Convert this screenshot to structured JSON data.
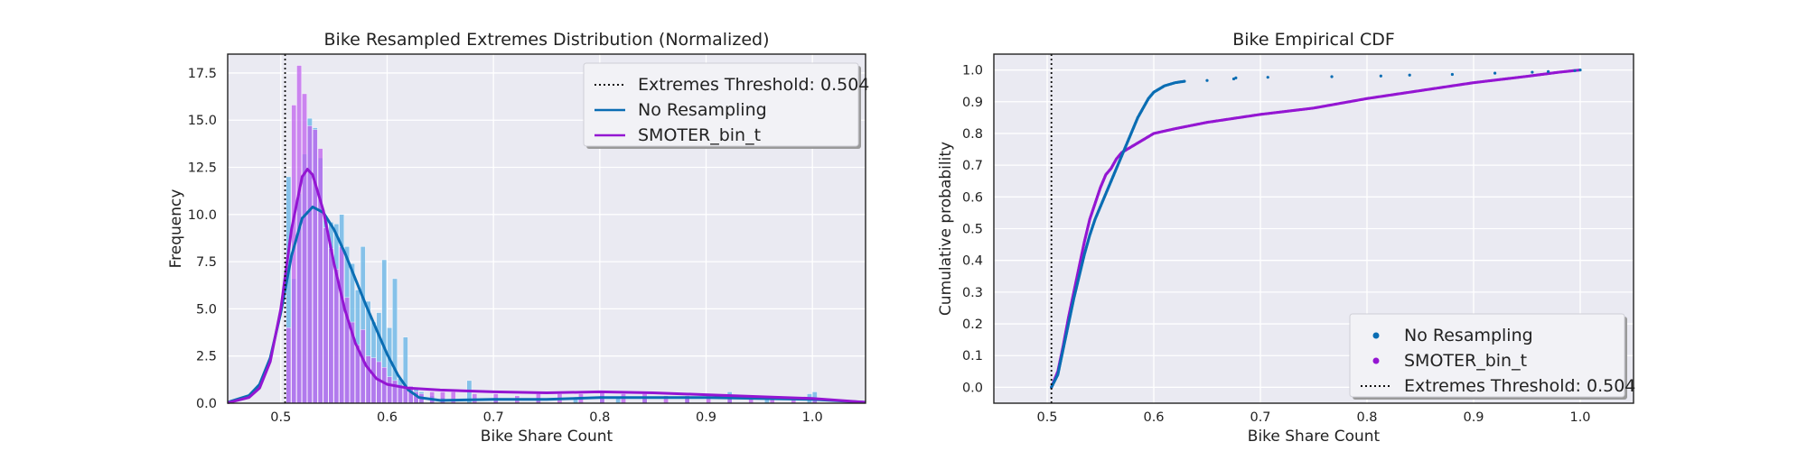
{
  "colors": {
    "no_resampling": "#0a6db3",
    "no_resampling_hist": "#6cb7e6",
    "smoter": "#9416d2",
    "smoter_hist": "#c062ee",
    "threshold": "#111111",
    "axes_bg": "#eaeaf2",
    "grid": "#ffffff"
  },
  "chart_data": [
    {
      "type": "histogram+kde",
      "title": "Bike Resampled Extremes Distribution (Normalized)",
      "xlabel": "Bike Share Count",
      "ylabel": "Frequency",
      "xlim": [
        0.45,
        1.05
      ],
      "ylim": [
        0,
        18.5
      ],
      "xticks": [
        "0.5",
        "0.6",
        "0.7",
        "0.8",
        "0.9",
        "1.0"
      ],
      "xtick_values": [
        0.5,
        0.6,
        0.7,
        0.8,
        0.9,
        1.0
      ],
      "yticks": [
        "0.0",
        "2.5",
        "5.0",
        "7.5",
        "10.0",
        "12.5",
        "15.0",
        "17.5"
      ],
      "ytick_values": [
        0,
        2.5,
        5,
        7.5,
        10,
        12.5,
        15,
        17.5
      ],
      "grid": true,
      "legend_position": "top-right",
      "threshold": 0.504,
      "bin_width": 0.005,
      "legend": [
        {
          "label": "Extremes Threshold: 0.504",
          "style": "dotted",
          "color_key": "threshold"
        },
        {
          "label": "No Resampling",
          "style": "line",
          "color_key": "no_resampling"
        },
        {
          "label": "SMOTER_bin_t",
          "style": "line",
          "color_key": "smoter"
        }
      ],
      "series": [
        {
          "name": "No Resampling",
          "hist_bins": [
            [
              0.505,
              12.0
            ],
            [
              0.51,
              6.6
            ],
            [
              0.515,
              11.1
            ],
            [
              0.52,
              13.2
            ],
            [
              0.525,
              15.1
            ],
            [
              0.53,
              14.6
            ],
            [
              0.535,
              13.0
            ],
            [
              0.54,
              9.7
            ],
            [
              0.545,
              9.6
            ],
            [
              0.55,
              9.5
            ],
            [
              0.555,
              10.0
            ],
            [
              0.56,
              8.3
            ],
            [
              0.565,
              7.4
            ],
            [
              0.57,
              6.0
            ],
            [
              0.575,
              8.3
            ],
            [
              0.58,
              5.4
            ],
            [
              0.585,
              4.3
            ],
            [
              0.59,
              4.8
            ],
            [
              0.595,
              7.6
            ],
            [
              0.6,
              4.0
            ],
            [
              0.605,
              6.6
            ],
            [
              0.61,
              1.3
            ],
            [
              0.615,
              3.5
            ],
            [
              0.62,
              0.9
            ],
            [
              0.625,
              0.8
            ],
            [
              0.63,
              0.6
            ],
            [
              0.64,
              0.4
            ],
            [
              0.65,
              0.3
            ],
            [
              0.675,
              1.2
            ],
            [
              0.7,
              0.3
            ],
            [
              0.74,
              0.3
            ],
            [
              0.775,
              0.3
            ],
            [
              0.8,
              0.4
            ],
            [
              0.815,
              0.3
            ],
            [
              0.84,
              0.3
            ],
            [
              0.88,
              0.3
            ],
            [
              0.92,
              0.6
            ],
            [
              0.955,
              0.4
            ],
            [
              0.995,
              0.5
            ],
            [
              1.0,
              0.6
            ]
          ],
          "kde": [
            [
              0.45,
              0.05
            ],
            [
              0.47,
              0.4
            ],
            [
              0.48,
              1.0
            ],
            [
              0.49,
              2.4
            ],
            [
              0.5,
              4.8
            ],
            [
              0.51,
              7.8
            ],
            [
              0.52,
              9.8
            ],
            [
              0.53,
              10.4
            ],
            [
              0.54,
              10.1
            ],
            [
              0.55,
              9.2
            ],
            [
              0.56,
              8.0
            ],
            [
              0.57,
              6.6
            ],
            [
              0.58,
              5.2
            ],
            [
              0.59,
              3.9
            ],
            [
              0.6,
              2.6
            ],
            [
              0.61,
              1.5
            ],
            [
              0.62,
              0.7
            ],
            [
              0.63,
              0.3
            ],
            [
              0.65,
              0.15
            ],
            [
              0.7,
              0.2
            ],
            [
              0.75,
              0.2
            ],
            [
              0.8,
              0.3
            ],
            [
              0.85,
              0.3
            ],
            [
              0.9,
              0.3
            ],
            [
              0.95,
              0.25
            ],
            [
              1.0,
              0.2
            ],
            [
              1.05,
              0.05
            ]
          ]
        },
        {
          "name": "SMOTER_bin_t",
          "hist_bins": [
            [
              0.505,
              4.0
            ],
            [
              0.51,
              15.8
            ],
            [
              0.515,
              17.9
            ],
            [
              0.52,
              16.4
            ],
            [
              0.525,
              14.7
            ],
            [
              0.53,
              14.5
            ],
            [
              0.535,
              13.5
            ],
            [
              0.54,
              9.3
            ],
            [
              0.545,
              8.2
            ],
            [
              0.55,
              7.1
            ],
            [
              0.555,
              8.3
            ],
            [
              0.56,
              5.6
            ],
            [
              0.565,
              4.3
            ],
            [
              0.57,
              3.1
            ],
            [
              0.575,
              3.9
            ],
            [
              0.58,
              2.5
            ],
            [
              0.585,
              2.4
            ],
            [
              0.59,
              2.2
            ],
            [
              0.595,
              1.9
            ],
            [
              0.6,
              1.4
            ],
            [
              0.605,
              1.2
            ],
            [
              0.61,
              0.9
            ],
            [
              0.615,
              0.9
            ],
            [
              0.62,
              0.9
            ],
            [
              0.625,
              0.6
            ],
            [
              0.63,
              0.5
            ],
            [
              0.64,
              0.6
            ],
            [
              0.65,
              0.6
            ],
            [
              0.66,
              0.6
            ],
            [
              0.68,
              0.5
            ],
            [
              0.7,
              0.5
            ],
            [
              0.72,
              0.4
            ],
            [
              0.74,
              0.5
            ],
            [
              0.76,
              0.5
            ],
            [
              0.78,
              0.5
            ],
            [
              0.8,
              0.6
            ],
            [
              0.82,
              0.5
            ],
            [
              0.84,
              0.5
            ],
            [
              0.86,
              0.4
            ],
            [
              0.88,
              0.4
            ],
            [
              0.9,
              0.4
            ],
            [
              0.92,
              0.3
            ],
            [
              0.94,
              0.3
            ],
            [
              0.96,
              0.3
            ],
            [
              0.98,
              0.3
            ],
            [
              1.0,
              0.2
            ]
          ],
          "kde": [
            [
              0.45,
              0.02
            ],
            [
              0.47,
              0.3
            ],
            [
              0.48,
              0.8
            ],
            [
              0.49,
              2.2
            ],
            [
              0.5,
              5.0
            ],
            [
              0.51,
              9.2
            ],
            [
              0.52,
              12.0
            ],
            [
              0.525,
              12.4
            ],
            [
              0.53,
              12.1
            ],
            [
              0.54,
              10.2
            ],
            [
              0.55,
              7.4
            ],
            [
              0.56,
              5.0
            ],
            [
              0.57,
              3.2
            ],
            [
              0.58,
              2.0
            ],
            [
              0.59,
              1.3
            ],
            [
              0.6,
              1.0
            ],
            [
              0.62,
              0.8
            ],
            [
              0.65,
              0.7
            ],
            [
              0.7,
              0.6
            ],
            [
              0.75,
              0.55
            ],
            [
              0.8,
              0.6
            ],
            [
              0.85,
              0.55
            ],
            [
              0.9,
              0.45
            ],
            [
              0.95,
              0.35
            ],
            [
              1.0,
              0.25
            ],
            [
              1.05,
              0.05
            ]
          ]
        }
      ]
    },
    {
      "type": "scatter",
      "title": "Bike Empirical CDF",
      "xlabel": "Bike Share Count",
      "ylabel": "Cumulative probability",
      "xlim": [
        0.45,
        1.05
      ],
      "ylim": [
        -0.05,
        1.05
      ],
      "xticks": [
        "0.5",
        "0.6",
        "0.7",
        "0.8",
        "0.9",
        "1.0"
      ],
      "xtick_values": [
        0.5,
        0.6,
        0.7,
        0.8,
        0.9,
        1.0
      ],
      "yticks": [
        "0.0",
        "0.1",
        "0.2",
        "0.3",
        "0.4",
        "0.5",
        "0.6",
        "0.7",
        "0.8",
        "0.9",
        "1.0"
      ],
      "ytick_values": [
        0,
        0.1,
        0.2,
        0.3,
        0.4,
        0.5,
        0.6,
        0.7,
        0.8,
        0.9,
        1.0
      ],
      "grid": true,
      "legend_position": "bottom-right",
      "threshold": 0.504,
      "legend": [
        {
          "label": "No Resampling",
          "style": "dot",
          "color_key": "no_resampling"
        },
        {
          "label": "SMOTER_bin_t",
          "style": "dot",
          "color_key": "smoter"
        },
        {
          "label": "Extremes Threshold: 0.504",
          "style": "dotted",
          "color_key": "threshold"
        }
      ],
      "series": [
        {
          "name": "No Resampling",
          "curve": [
            [
              0.504,
              0.0
            ],
            [
              0.51,
              0.04
            ],
            [
              0.515,
              0.12
            ],
            [
              0.52,
              0.2
            ],
            [
              0.525,
              0.28
            ],
            [
              0.53,
              0.35
            ],
            [
              0.535,
              0.42
            ],
            [
              0.54,
              0.48
            ],
            [
              0.545,
              0.53
            ],
            [
              0.55,
              0.57
            ],
            [
              0.555,
              0.61
            ],
            [
              0.56,
              0.65
            ],
            [
              0.565,
              0.69
            ],
            [
              0.57,
              0.73
            ],
            [
              0.575,
              0.77
            ],
            [
              0.58,
              0.81
            ],
            [
              0.585,
              0.85
            ],
            [
              0.59,
              0.88
            ],
            [
              0.595,
              0.91
            ],
            [
              0.6,
              0.93
            ],
            [
              0.605,
              0.94
            ],
            [
              0.61,
              0.95
            ],
            [
              0.62,
              0.96
            ],
            [
              0.63,
              0.965
            ]
          ],
          "isolated_points": [
            [
              0.65,
              0.967
            ],
            [
              0.675,
              0.972
            ],
            [
              0.677,
              0.975
            ],
            [
              0.707,
              0.977
            ],
            [
              0.767,
              0.979
            ],
            [
              0.813,
              0.981
            ],
            [
              0.84,
              0.984
            ],
            [
              0.88,
              0.986
            ],
            [
              0.92,
              0.99
            ],
            [
              0.955,
              0.993
            ],
            [
              0.97,
              0.995
            ],
            [
              0.995,
              0.998
            ],
            [
              1.0,
              1.0
            ]
          ]
        },
        {
          "name": "SMOTER_bin_t",
          "curve": [
            [
              0.504,
              0.0
            ],
            [
              0.51,
              0.05
            ],
            [
              0.515,
              0.13
            ],
            [
              0.52,
              0.22
            ],
            [
              0.525,
              0.3
            ],
            [
              0.53,
              0.38
            ],
            [
              0.535,
              0.46
            ],
            [
              0.54,
              0.53
            ],
            [
              0.545,
              0.58
            ],
            [
              0.55,
              0.63
            ],
            [
              0.555,
              0.67
            ],
            [
              0.56,
              0.69
            ],
            [
              0.565,
              0.72
            ],
            [
              0.57,
              0.74
            ],
            [
              0.58,
              0.76
            ],
            [
              0.59,
              0.78
            ],
            [
              0.6,
              0.8
            ],
            [
              0.62,
              0.815
            ],
            [
              0.65,
              0.835
            ],
            [
              0.7,
              0.86
            ],
            [
              0.75,
              0.88
            ],
            [
              0.8,
              0.91
            ],
            [
              0.85,
              0.935
            ],
            [
              0.9,
              0.96
            ],
            [
              0.95,
              0.98
            ],
            [
              0.98,
              0.993
            ],
            [
              1.0,
              1.0
            ]
          ],
          "isolated_points": []
        }
      ]
    }
  ]
}
